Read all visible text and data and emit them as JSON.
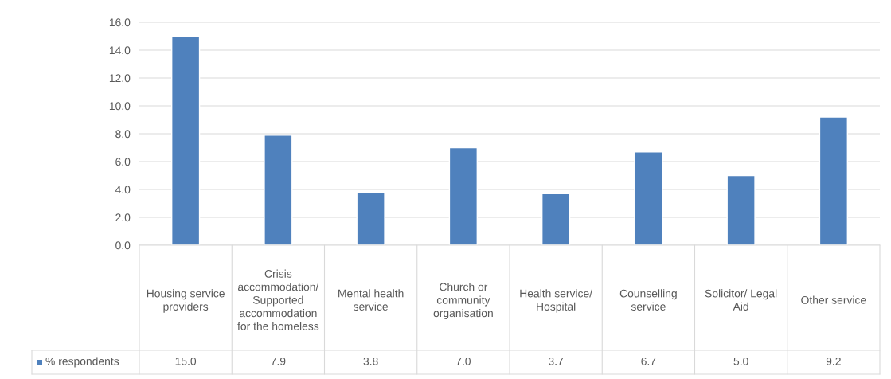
{
  "chart_data": {
    "type": "bar",
    "categories": [
      "Housing service providers",
      "Crisis accommodation/ Supported accommodation for the homeless",
      "Mental health service",
      "Church or community organisation",
      "Health service/ Hospital",
      "Counselling service",
      "Solicitor/ Legal Aid",
      "Other service"
    ],
    "series": [
      {
        "name": "% respondents",
        "color": "#4f81bd",
        "values": [
          15.0,
          7.9,
          3.8,
          7.0,
          3.7,
          6.7,
          5.0,
          9.2
        ],
        "value_labels": [
          "15.0",
          "7.9",
          "3.8",
          "7.0",
          "3.7",
          "6.7",
          "5.0",
          "9.2"
        ]
      }
    ],
    "ylim": [
      0,
      16
    ],
    "yticks": [
      {
        "value": 0,
        "label": "0.0"
      },
      {
        "value": 2,
        "label": "2.0"
      },
      {
        "value": 4,
        "label": "4.0"
      },
      {
        "value": 6,
        "label": "6.0"
      },
      {
        "value": 8,
        "label": "8.0"
      },
      {
        "value": 10,
        "label": "10.0"
      },
      {
        "value": 12,
        "label": "12.0"
      },
      {
        "value": 14,
        "label": "14.0"
      },
      {
        "value": 16,
        "label": "16.0"
      }
    ],
    "grid": "y",
    "legend": "bottom"
  }
}
